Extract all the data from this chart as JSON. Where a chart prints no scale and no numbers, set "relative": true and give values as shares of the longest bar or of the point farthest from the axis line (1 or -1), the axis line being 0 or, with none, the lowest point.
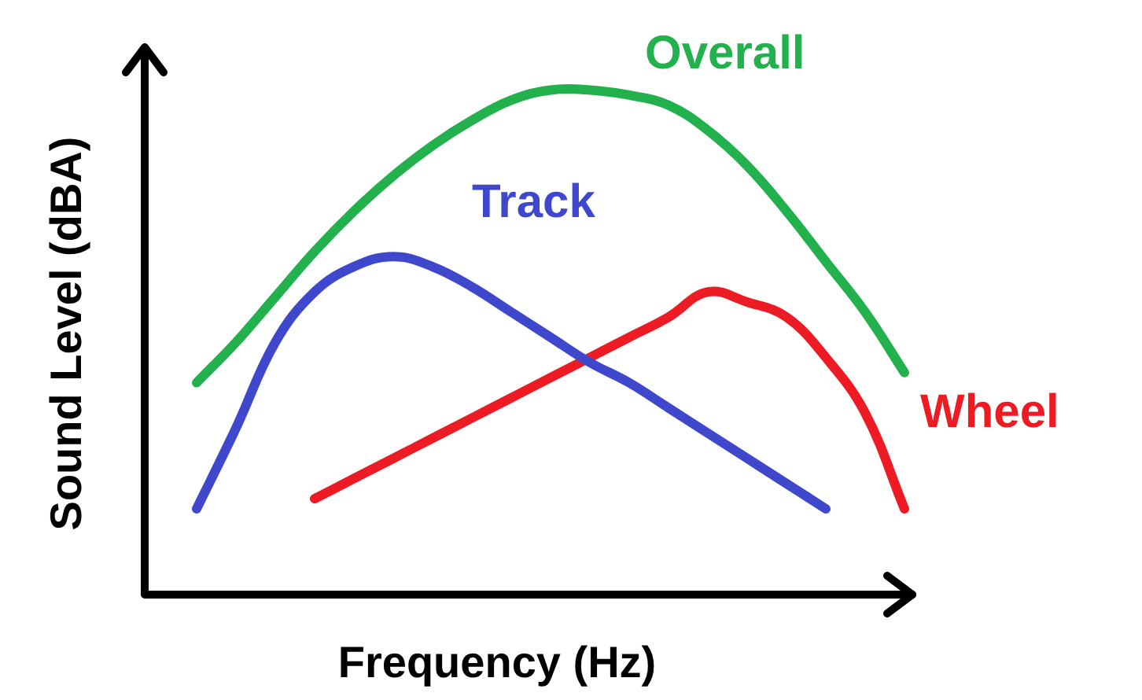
{
  "chart_data": {
    "type": "line",
    "relative": true,
    "xlabel": "Frequency (Hz)",
    "ylabel": "Sound Level (dBA)",
    "marker": "none",
    "legend": false,
    "categories": [
      null,
      null,
      null,
      null,
      null,
      null,
      null,
      null,
      null,
      null,
      null,
      null,
      null,
      null,
      null,
      null,
      null,
      null,
      null
    ],
    "series": [
      {
        "name": "Overall",
        "color": "#22b14c",
        "values": [
          0.42,
          0.5,
          0.59,
          0.68,
          0.76,
          0.83,
          0.89,
          0.94,
          0.98,
          1.0,
          1.0,
          0.99,
          0.97,
          0.92,
          0.85,
          0.76,
          0.66,
          0.56,
          0.44
        ]
      },
      {
        "name": "Track",
        "color": "#3f48cc",
        "values": [
          0.17,
          0.33,
          0.5,
          0.6,
          0.65,
          0.67,
          0.65,
          0.61,
          0.56,
          0.51,
          0.46,
          0.42,
          0.37,
          0.32,
          0.27,
          0.22,
          0.17,
          null,
          null
        ]
      },
      {
        "name": "Wheel",
        "color": "#ed1c24",
        "values": [
          null,
          null,
          null,
          0.19,
          0.23,
          0.27,
          0.31,
          0.35,
          0.39,
          0.43,
          0.47,
          0.51,
          0.55,
          0.6,
          0.58,
          0.55,
          0.47,
          0.36,
          0.17
        ]
      }
    ]
  }
}
